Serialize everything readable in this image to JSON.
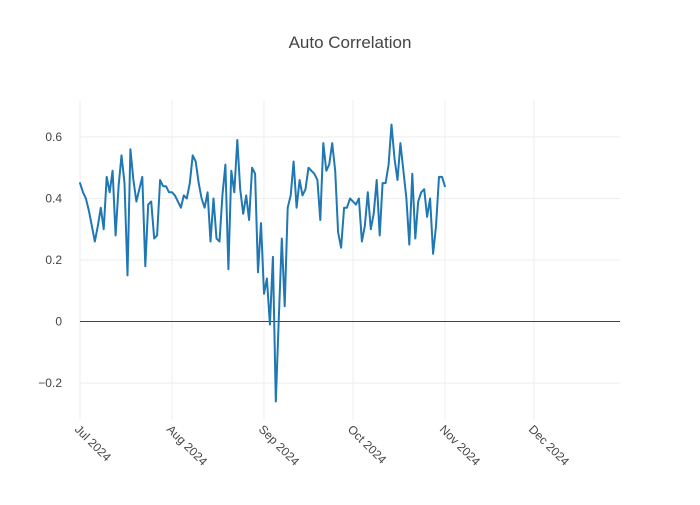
{
  "chart_data": {
    "type": "line",
    "title": "Auto Correlation",
    "xlabel": "",
    "ylabel": "",
    "x_range": [
      "2024-07-01",
      "2024-12-30"
    ],
    "ylim": [
      -0.32,
      0.72
    ],
    "y_ticks": [
      -0.2,
      0,
      0.2,
      0.4,
      0.6
    ],
    "y_tick_labels": [
      "−0.2",
      "0",
      "0.2",
      "0.4",
      "0.6"
    ],
    "x_ticks": [
      "2024-07-01",
      "2024-08-01",
      "2024-09-01",
      "2024-10-01",
      "2024-11-01",
      "2024-12-01"
    ],
    "x_tick_labels": [
      "Jul 2024",
      "Aug 2024",
      "Sep 2024",
      "Oct 2024",
      "Nov 2024",
      "Dec 2024"
    ],
    "grid": true,
    "zero_line": true,
    "line_color": "#1f77b4",
    "series": [
      {
        "values": [
          [
            "2024-07-01",
            0.45
          ],
          [
            "2024-07-02",
            0.42
          ],
          [
            "2024-07-03",
            0.4
          ],
          [
            "2024-07-04",
            0.36
          ],
          [
            "2024-07-05",
            0.31
          ],
          [
            "2024-07-06",
            0.26
          ],
          [
            "2024-07-07",
            0.31
          ],
          [
            "2024-07-08",
            0.37
          ],
          [
            "2024-07-09",
            0.3
          ],
          [
            "2024-07-10",
            0.47
          ],
          [
            "2024-07-11",
            0.42
          ],
          [
            "2024-07-12",
            0.49
          ],
          [
            "2024-07-13",
            0.28
          ],
          [
            "2024-07-14",
            0.44
          ],
          [
            "2024-07-15",
            0.54
          ],
          [
            "2024-07-16",
            0.45
          ],
          [
            "2024-07-17",
            0.15
          ],
          [
            "2024-07-18",
            0.56
          ],
          [
            "2024-07-19",
            0.46
          ],
          [
            "2024-07-20",
            0.39
          ],
          [
            "2024-07-21",
            0.43
          ],
          [
            "2024-07-22",
            0.47
          ],
          [
            "2024-07-23",
            0.18
          ],
          [
            "2024-07-24",
            0.38
          ],
          [
            "2024-07-25",
            0.39
          ],
          [
            "2024-07-26",
            0.27
          ],
          [
            "2024-07-27",
            0.28
          ],
          [
            "2024-07-28",
            0.46
          ],
          [
            "2024-07-29",
            0.44
          ],
          [
            "2024-07-30",
            0.44
          ],
          [
            "2024-07-31",
            0.42
          ],
          [
            "2024-08-01",
            0.42
          ],
          [
            "2024-08-02",
            0.41
          ],
          [
            "2024-08-03",
            0.39
          ],
          [
            "2024-08-04",
            0.37
          ],
          [
            "2024-08-05",
            0.41
          ],
          [
            "2024-08-06",
            0.4
          ],
          [
            "2024-08-07",
            0.45
          ],
          [
            "2024-08-08",
            0.54
          ],
          [
            "2024-08-09",
            0.52
          ],
          [
            "2024-08-10",
            0.45
          ],
          [
            "2024-08-11",
            0.4
          ],
          [
            "2024-08-12",
            0.37
          ],
          [
            "2024-08-13",
            0.42
          ],
          [
            "2024-08-14",
            0.26
          ],
          [
            "2024-08-15",
            0.4
          ],
          [
            "2024-08-16",
            0.27
          ],
          [
            "2024-08-17",
            0.26
          ],
          [
            "2024-08-18",
            0.41
          ],
          [
            "2024-08-19",
            0.51
          ],
          [
            "2024-08-20",
            0.17
          ],
          [
            "2024-08-21",
            0.49
          ],
          [
            "2024-08-22",
            0.42
          ],
          [
            "2024-08-23",
            0.59
          ],
          [
            "2024-08-24",
            0.43
          ],
          [
            "2024-08-25",
            0.35
          ],
          [
            "2024-08-26",
            0.41
          ],
          [
            "2024-08-27",
            0.33
          ],
          [
            "2024-08-28",
            0.5
          ],
          [
            "2024-08-29",
            0.48
          ],
          [
            "2024-08-30",
            0.16
          ],
          [
            "2024-08-31",
            0.32
          ],
          [
            "2024-09-01",
            0.09
          ],
          [
            "2024-09-02",
            0.14
          ],
          [
            "2024-09-03",
            -0.01
          ],
          [
            "2024-09-04",
            0.21
          ],
          [
            "2024-09-05",
            -0.26
          ],
          [
            "2024-09-06",
            0.01
          ],
          [
            "2024-09-07",
            0.27
          ],
          [
            "2024-09-08",
            0.05
          ],
          [
            "2024-09-09",
            0.37
          ],
          [
            "2024-09-10",
            0.41
          ],
          [
            "2024-09-11",
            0.52
          ],
          [
            "2024-09-12",
            0.37
          ],
          [
            "2024-09-13",
            0.46
          ],
          [
            "2024-09-14",
            0.41
          ],
          [
            "2024-09-15",
            0.43
          ],
          [
            "2024-09-16",
            0.5
          ],
          [
            "2024-09-17",
            0.49
          ],
          [
            "2024-09-18",
            0.48
          ],
          [
            "2024-09-19",
            0.46
          ],
          [
            "2024-09-20",
            0.33
          ],
          [
            "2024-09-21",
            0.58
          ],
          [
            "2024-09-22",
            0.49
          ],
          [
            "2024-09-23",
            0.51
          ],
          [
            "2024-09-24",
            0.58
          ],
          [
            "2024-09-25",
            0.49
          ],
          [
            "2024-09-26",
            0.29
          ],
          [
            "2024-09-27",
            0.24
          ],
          [
            "2024-09-28",
            0.37
          ],
          [
            "2024-09-29",
            0.37
          ],
          [
            "2024-09-30",
            0.4
          ],
          [
            "2024-10-01",
            0.39
          ],
          [
            "2024-10-02",
            0.38
          ],
          [
            "2024-10-03",
            0.4
          ],
          [
            "2024-10-04",
            0.26
          ],
          [
            "2024-10-05",
            0.31
          ],
          [
            "2024-10-06",
            0.42
          ],
          [
            "2024-10-07",
            0.3
          ],
          [
            "2024-10-08",
            0.35
          ],
          [
            "2024-10-09",
            0.46
          ],
          [
            "2024-10-10",
            0.28
          ],
          [
            "2024-10-11",
            0.45
          ],
          [
            "2024-10-12",
            0.45
          ],
          [
            "2024-10-13",
            0.51
          ],
          [
            "2024-10-14",
            0.64
          ],
          [
            "2024-10-15",
            0.53
          ],
          [
            "2024-10-16",
            0.46
          ],
          [
            "2024-10-17",
            0.58
          ],
          [
            "2024-10-18",
            0.49
          ],
          [
            "2024-10-19",
            0.4
          ],
          [
            "2024-10-20",
            0.25
          ],
          [
            "2024-10-21",
            0.48
          ],
          [
            "2024-10-22",
            0.27
          ],
          [
            "2024-10-23",
            0.39
          ],
          [
            "2024-10-24",
            0.42
          ],
          [
            "2024-10-25",
            0.43
          ],
          [
            "2024-10-26",
            0.34
          ],
          [
            "2024-10-27",
            0.4
          ],
          [
            "2024-10-28",
            0.22
          ],
          [
            "2024-10-29",
            0.31
          ],
          [
            "2024-10-30",
            0.47
          ],
          [
            "2024-10-31",
            0.47
          ],
          [
            "2024-11-01",
            0.44
          ]
        ]
      }
    ]
  }
}
